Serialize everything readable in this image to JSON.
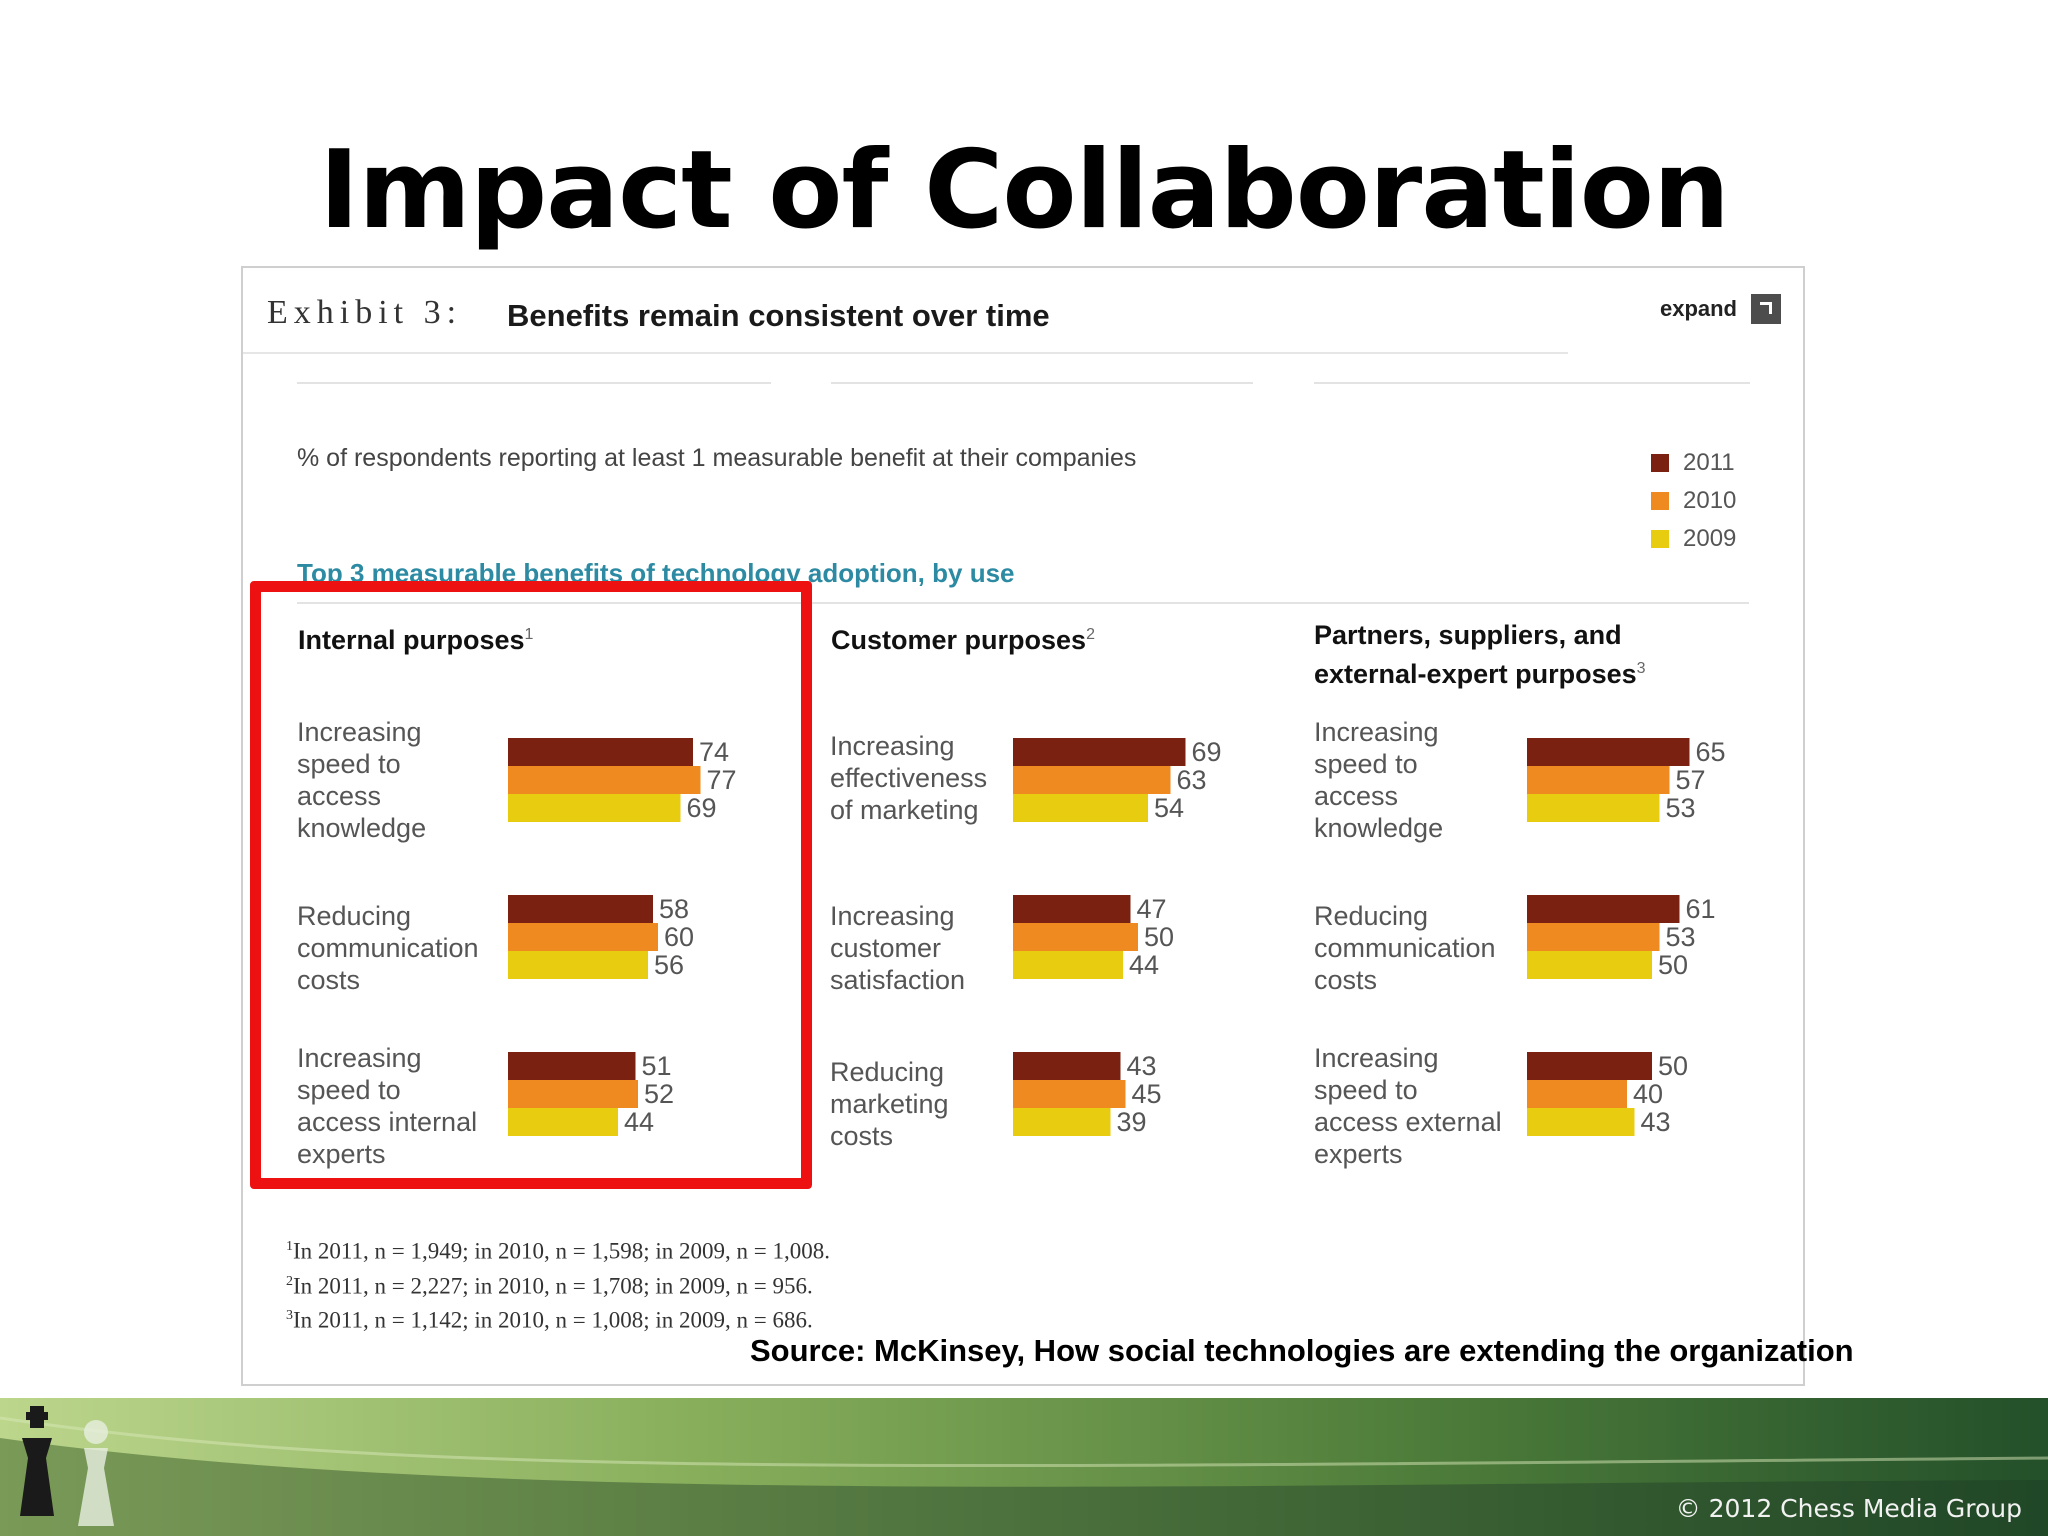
{
  "slide": {
    "title": "Impact of Collaboration",
    "copyright": "© 2012 Chess Media Group",
    "source": "Source: McKinsey, How social technologies are extending the organization"
  },
  "exhibit": {
    "label": "Exhibit 3:",
    "title": "Benefits remain consistent over time",
    "expand_label": "expand",
    "subtitle": "% of respondents reporting at least 1 measurable benefit at their companies",
    "section_title": "Top 3 measurable benefits of technology adoption, by use",
    "footnotes": [
      {
        "num": "1",
        "text": "In 2011, n = 1,949; in 2010, n = 1,598; in 2009, n = 1,008."
      },
      {
        "num": "2",
        "text": "In 2011, n = 2,227; in 2010, n = 1,708; in 2009, n = 956."
      },
      {
        "num": "3",
        "text": "In 2011, n = 1,142; in 2010, n =  1,008; in 2009, n = 686."
      }
    ]
  },
  "colors": {
    "2011": "#7b2112",
    "2010": "#ee8a1f",
    "2009": "#e8cc10",
    "highlight": "#ee1111",
    "section_title": "#2c8aa3"
  },
  "chart_data": {
    "type": "bar",
    "orientation": "horizontal",
    "series_names": [
      "2011",
      "2010",
      "2009"
    ],
    "legend": [
      "2011",
      "2010",
      "2009"
    ],
    "legend_position": "top-right",
    "panels": [
      {
        "title": "Internal purposes",
        "footnote": "1",
        "categories": [
          {
            "label": [
              "Increasing",
              "speed to",
              "access",
              "knowledge"
            ],
            "values": [
              74,
              77,
              69
            ]
          },
          {
            "label": [
              "Reducing",
              "communication",
              "costs"
            ],
            "values": [
              58,
              60,
              56
            ]
          },
          {
            "label": [
              "Increasing",
              "speed to",
              "access internal",
              "experts"
            ],
            "values": [
              51,
              52,
              44
            ]
          }
        ]
      },
      {
        "title": "Customer purposes",
        "footnote": "2",
        "categories": [
          {
            "label": [
              "Increasing",
              "effectiveness",
              "of marketing"
            ],
            "values": [
              69,
              63,
              54
            ]
          },
          {
            "label": [
              "Increasing",
              "customer",
              "satisfaction"
            ],
            "values": [
              47,
              50,
              44
            ]
          },
          {
            "label": [
              "Reducing",
              "marketing",
              "costs"
            ],
            "values": [
              43,
              45,
              39
            ]
          }
        ]
      },
      {
        "title": "Partners, suppliers, and external-expert purposes",
        "title_lines": [
          "Partners, suppliers, and",
          "external-expert purposes"
        ],
        "footnote": "3",
        "categories": [
          {
            "label": [
              "Increasing",
              "speed to",
              "access",
              "knowledge"
            ],
            "values": [
              65,
              57,
              53
            ]
          },
          {
            "label": [
              "Reducing",
              "communication",
              "costs"
            ],
            "values": [
              61,
              53,
              50
            ]
          },
          {
            "label": [
              "Increasing",
              "speed to",
              "access external",
              "experts"
            ],
            "values": [
              50,
              40,
              43
            ]
          }
        ]
      }
    ]
  }
}
